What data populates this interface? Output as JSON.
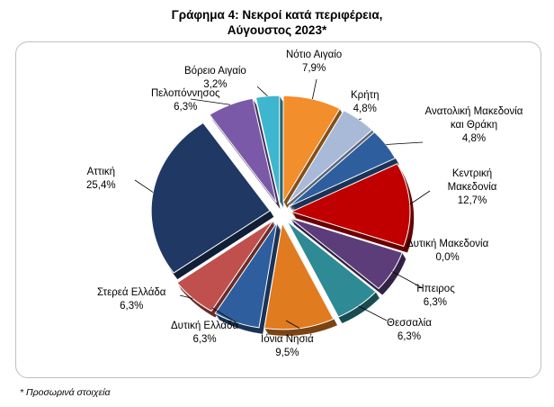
{
  "title_line1": "Γράφημα 4: Νεκροί κατά περιφέρεια,",
  "title_line2": "Αύγουστος 2023*",
  "footnote": "* Προσωρινά στοιχεία",
  "chart_data": {
    "type": "pie",
    "title": "Γράφημα 4: Νεκροί κατά περιφέρεια, Αύγουστος 2023*",
    "unit": "%",
    "slices": [
      {
        "name": "Νότιο Αιγαίο",
        "value": 7.9,
        "value_label": "7,9%",
        "color": "#f28e2b"
      },
      {
        "name": "Κρήτη",
        "value": 4.8,
        "value_label": "4,8%",
        "color": "#a9bad8"
      },
      {
        "name": "Ανατολική Μακεδονία και Θράκη",
        "value": 4.8,
        "value_label": "4,8%",
        "color": "#2f5e9e"
      },
      {
        "name": "Κεντρική Μακεδονία",
        "value": 12.7,
        "value_label": "12,7%",
        "color": "#c00000"
      },
      {
        "name": "Δυτική Μακεδονία",
        "value": 0.0,
        "value_label": "0,0%",
        "color": "#7f7f7f"
      },
      {
        "name": "Ήπειρος",
        "value": 6.3,
        "value_label": "6,3%",
        "color": "#5c3d7a"
      },
      {
        "name": "Θεσσαλία",
        "value": 6.3,
        "value_label": "6,3%",
        "color": "#2e8a94"
      },
      {
        "name": "Ιόνια Νησιά",
        "value": 9.5,
        "value_label": "9,5%",
        "color": "#e07b20"
      },
      {
        "name": "Δυτική Ελλάδα",
        "value": 6.3,
        "value_label": "6,3%",
        "color": "#2f5e9e"
      },
      {
        "name": "Στερεά Ελλάδα",
        "value": 6.3,
        "value_label": "6,3%",
        "color": "#c0504d"
      },
      {
        "name": "Αττική",
        "value": 25.4,
        "value_label": "25,4%",
        "color": "#1f3864"
      },
      {
        "name": "Πελοπόννησος",
        "value": 6.3,
        "value_label": "6,3%",
        "color": "#7a5aa8"
      },
      {
        "name": "Βόρειο Αιγαίο",
        "value": 3.2,
        "value_label": "3,2%",
        "color": "#3fb6cf"
      }
    ]
  }
}
